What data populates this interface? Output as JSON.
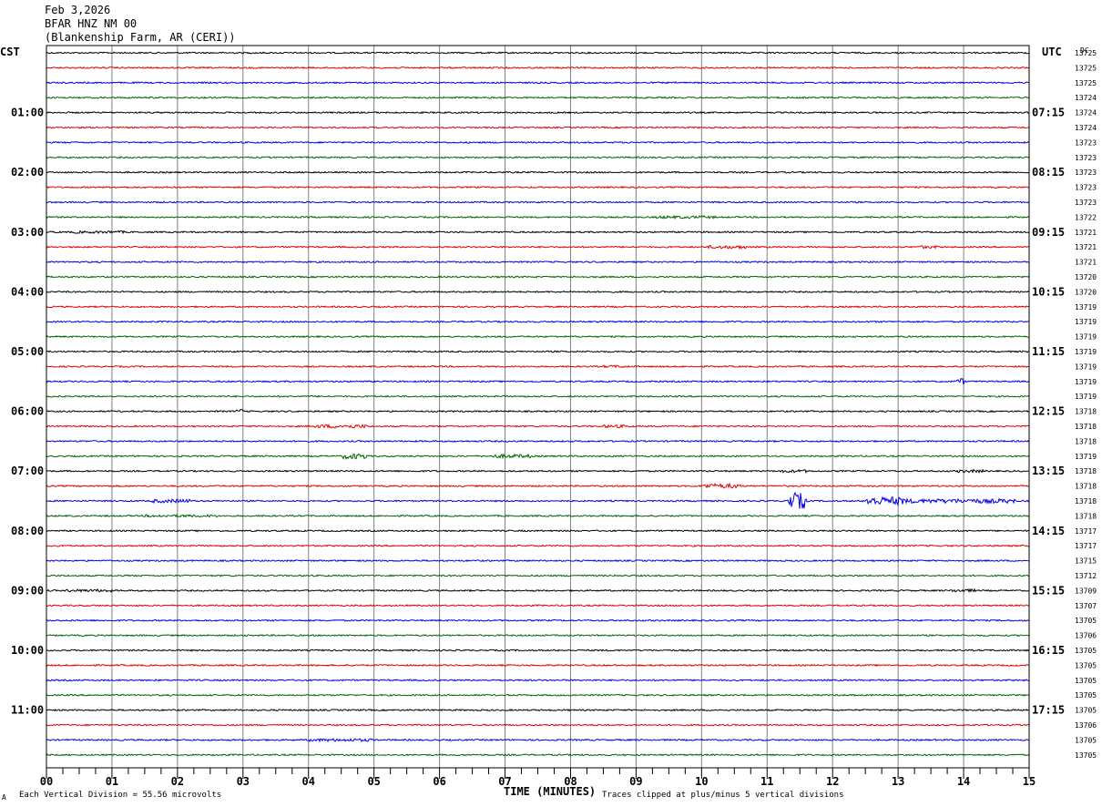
{
  "header": {
    "date": "Feb 3,2026",
    "station": "BFAR HNZ NM 00",
    "site": "(Blankenship Farm, AR (CERI))"
  },
  "left_axis_label": "CST",
  "right_axis_label": "UTC",
  "counts_label": "DC",
  "footer": {
    "scale": "Each Vertical Division =   55.56 microvolts",
    "xlabel": "TIME (MINUTES)",
    "clip_note": "Traces clipped at plus/minus 5 vertical divisions",
    "corner_mark": "A"
  },
  "colors": {
    "trace_cycle": [
      "#000000",
      "#e00000",
      "#0000e0",
      "#006400"
    ],
    "grid": "#808080"
  },
  "chart_data": {
    "type": "line",
    "title": "BFAR HNZ NM 00",
    "xlabel": "TIME (MINUTES)",
    "xlim": [
      0,
      15
    ],
    "x_ticks": [
      "00",
      "01",
      "02",
      "03",
      "04",
      "05",
      "06",
      "07",
      "08",
      "09",
      "10",
      "11",
      "12",
      "13",
      "14",
      "15"
    ],
    "trace_count": 48,
    "left_hour_labels": [
      "01:00",
      "02:00",
      "03:00",
      "04:00",
      "05:00",
      "06:00",
      "07:00",
      "08:00",
      "09:00",
      "10:00",
      "11:00"
    ],
    "right_hour_labels": [
      "07:15",
      "08:15",
      "09:15",
      "10:15",
      "11:15",
      "12:15",
      "13:15",
      "14:15",
      "15:15",
      "16:15",
      "17:15"
    ],
    "hour_label_trace_index": [
      4,
      8,
      12,
      16,
      20,
      24,
      28,
      32,
      36,
      40,
      44
    ],
    "trace_dc_values": [
      13725,
      13725,
      13725,
      13724,
      13724,
      13724,
      13723,
      13723,
      13723,
      13723,
      13723,
      13722,
      13721,
      13721,
      13721,
      13720,
      13720,
      13719,
      13719,
      13719,
      13719,
      13719,
      13719,
      13719,
      13718,
      13718,
      13718,
      13719,
      13718,
      13718,
      13718,
      13718,
      13717,
      13717,
      13715,
      13712,
      13709,
      13707,
      13705,
      13706,
      13705,
      13705,
      13705,
      13705,
      13705,
      13706,
      13705,
      13705
    ],
    "events": [
      {
        "trace": 25,
        "minute_start": 4.1,
        "minute_end": 4.9,
        "amp": 2.0
      },
      {
        "trace": 27,
        "minute_start": 4.5,
        "minute_end": 4.9,
        "amp": 3.0
      },
      {
        "trace": 27,
        "minute_start": 6.8,
        "minute_end": 7.4,
        "amp": 2.0
      },
      {
        "trace": 25,
        "minute_start": 8.5,
        "minute_end": 8.9,
        "amp": 1.6
      },
      {
        "trace": 29,
        "minute_start": 10.0,
        "minute_end": 10.6,
        "amp": 2.5
      },
      {
        "trace": 30,
        "minute_start": 11.3,
        "minute_end": 11.6,
        "amp": 9.0
      },
      {
        "trace": 30,
        "minute_start": 12.5,
        "minute_end": 13.1,
        "amp": 4.5
      },
      {
        "trace": 30,
        "minute_start": 13.1,
        "minute_end": 14.8,
        "amp": 2.4
      },
      {
        "trace": 30,
        "minute_start": 1.6,
        "minute_end": 2.2,
        "amp": 2.0
      },
      {
        "trace": 13,
        "minute_start": 10.1,
        "minute_end": 10.7,
        "amp": 1.8
      },
      {
        "trace": 13,
        "minute_start": 13.3,
        "minute_end": 13.6,
        "amp": 1.6
      },
      {
        "trace": 11,
        "minute_start": 9.3,
        "minute_end": 10.2,
        "amp": 1.5
      },
      {
        "trace": 12,
        "minute_start": 0.4,
        "minute_end": 1.2,
        "amp": 1.4
      },
      {
        "trace": 22,
        "minute_start": 13.9,
        "minute_end": 14.0,
        "amp": 3.5
      },
      {
        "trace": 24,
        "minute_start": 2.9,
        "minute_end": 3.0,
        "amp": 2.5
      },
      {
        "trace": 28,
        "minute_start": 11.2,
        "minute_end": 11.6,
        "amp": 1.6
      },
      {
        "trace": 28,
        "minute_start": 13.9,
        "minute_end": 14.3,
        "amp": 1.6
      },
      {
        "trace": 36,
        "minute_start": 0.3,
        "minute_end": 1.0,
        "amp": 1.5
      },
      {
        "trace": 36,
        "minute_start": 13.8,
        "minute_end": 14.2,
        "amp": 1.6
      },
      {
        "trace": 46,
        "minute_start": 4.0,
        "minute_end": 5.0,
        "amp": 1.6
      },
      {
        "trace": 31,
        "minute_start": 1.5,
        "minute_end": 2.6,
        "amp": 1.4
      },
      {
        "trace": 21,
        "minute_start": 8.5,
        "minute_end": 8.9,
        "amp": 1.4
      }
    ]
  }
}
